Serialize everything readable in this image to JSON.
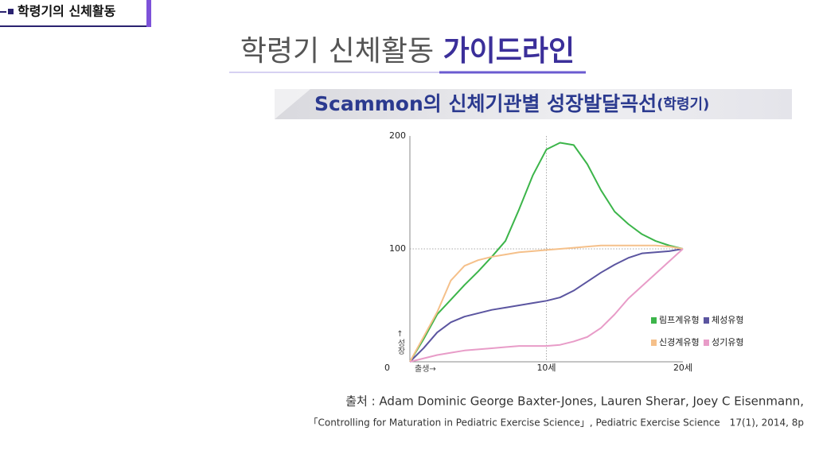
{
  "slide": {
    "tag": "학령기의 신체활동",
    "title_light": "학령기 신체활동",
    "title_bold": "가이드라인",
    "banner": "Scammon의 신체기관별 성장발달곡선",
    "banner_sub": "(학령기)",
    "source_line1": "출처 : Adam Dominic George Baxter-Jones, Lauren Sherar, Joey C Eisenmann,",
    "source_line2": "「Controlling for Maturation in Pediatric Exercise Science」, Pediatric Exercise Science　17(1), 2014, 8p"
  },
  "chart_data": {
    "type": "line",
    "y_label": "↑성장",
    "x_annotation": "출생→",
    "x": [
      0,
      1,
      2,
      3,
      4,
      5,
      6,
      7,
      8,
      9,
      10,
      11,
      12,
      13,
      14,
      15,
      16,
      17,
      18,
      19,
      20
    ],
    "series": [
      {
        "name": "림프계유형",
        "color": "#3cb54a",
        "values": [
          0,
          20,
          42,
          55,
          68,
          80,
          93,
          107,
          135,
          165,
          188,
          194,
          192,
          175,
          152,
          133,
          122,
          113,
          107,
          103,
          100
        ]
      },
      {
        "name": "체성유형",
        "color": "#5b55a0",
        "values": [
          0,
          12,
          26,
          35,
          40,
          43,
          46,
          48,
          50,
          52,
          54,
          57,
          63,
          71,
          79,
          86,
          92,
          96,
          97,
          98,
          100
        ]
      },
      {
        "name": "신경계유형",
        "color": "#f5c08a",
        "values": [
          0,
          22,
          44,
          72,
          85,
          90,
          93,
          95,
          97,
          98,
          99,
          100,
          101,
          102,
          103,
          103,
          103,
          103,
          103,
          102,
          100
        ]
      },
      {
        "name": "성기유형",
        "color": "#e89cc8",
        "values": [
          0,
          3,
          6,
          8,
          10,
          11,
          12,
          13,
          14,
          14,
          14,
          15,
          18,
          22,
          30,
          42,
          56,
          67,
          78,
          89,
          100
        ]
      }
    ],
    "xlim": [
      0,
      20
    ],
    "xticks": [
      {
        "value": 10,
        "label": "10세"
      },
      {
        "value": 20,
        "label": "20세"
      }
    ],
    "ylim": [
      0,
      200
    ],
    "yticks": [
      0,
      100,
      200
    ],
    "grid": true
  }
}
